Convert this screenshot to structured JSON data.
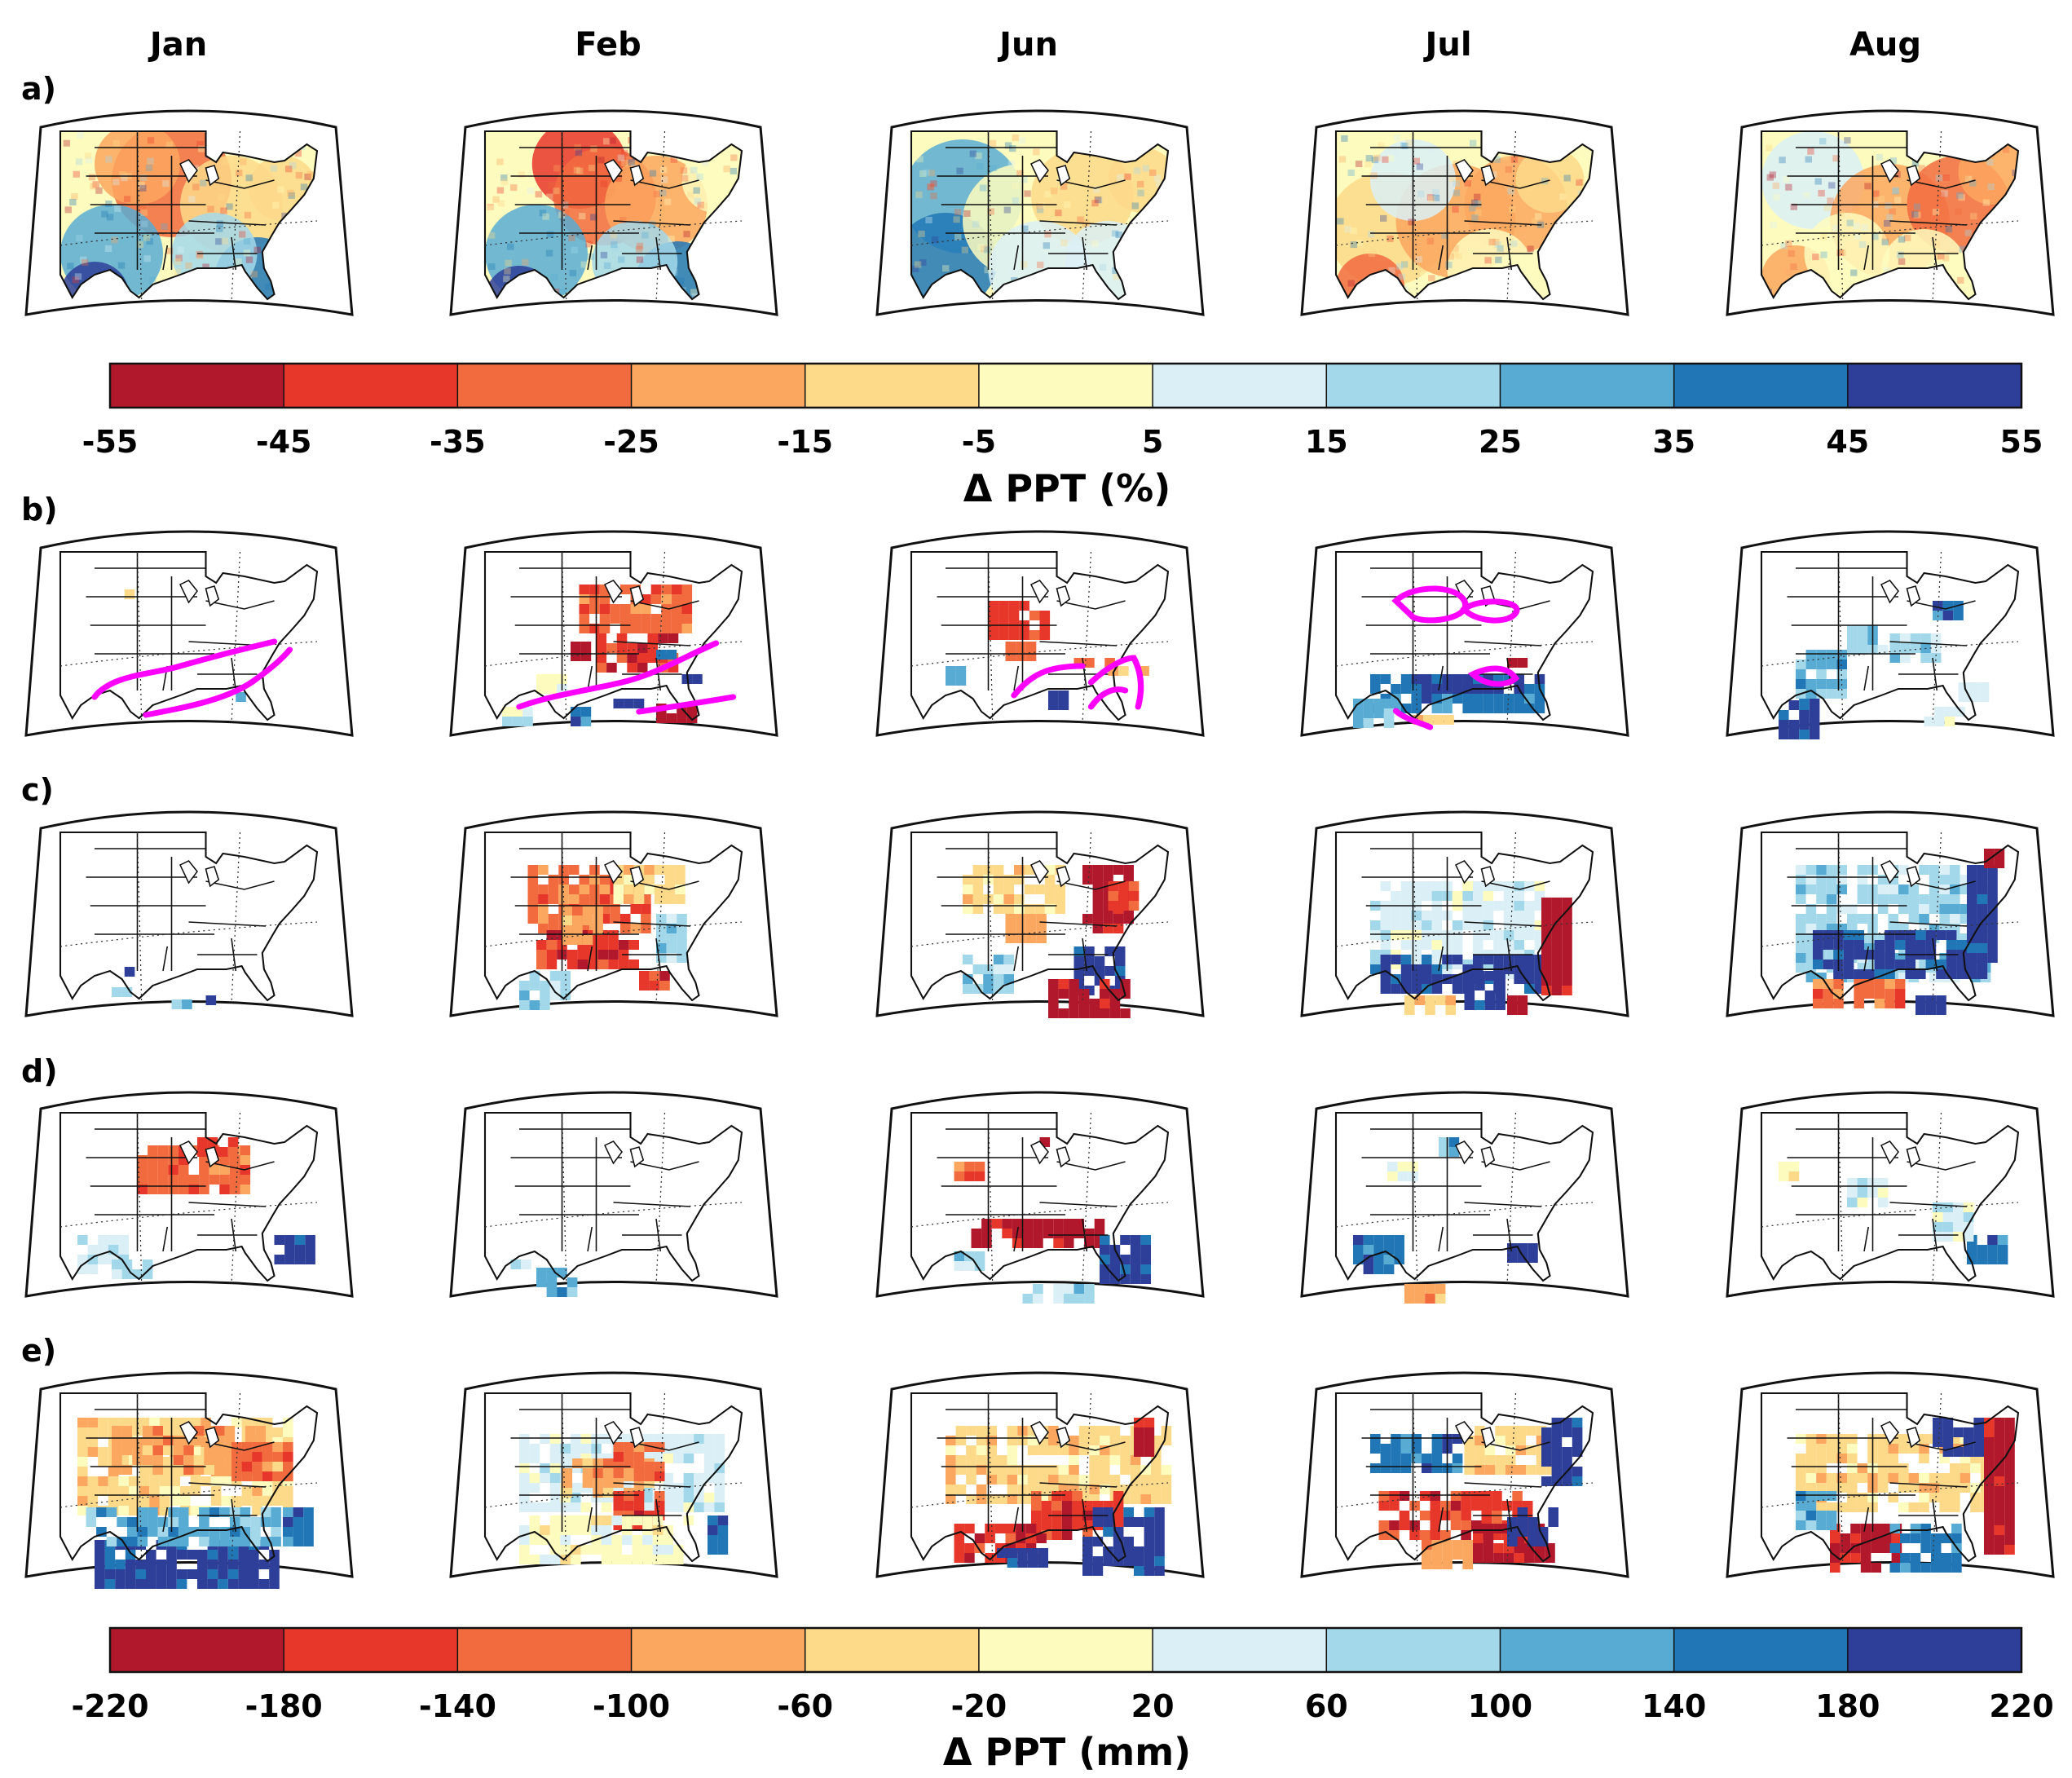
{
  "figure": {
    "months": [
      "Jan",
      "Feb",
      "Jun",
      "Jul",
      "Aug"
    ],
    "rows": [
      "a)",
      "b)",
      "c)",
      "d)",
      "e)"
    ],
    "map_region": "Eastern and central United States"
  },
  "colormap": [
    "#b2182b",
    "#e7362a",
    "#f26b3f",
    "#fba75f",
    "#fdd98a",
    "#fefbbe",
    "#daf0f6",
    "#a3d8ea",
    "#58acd4",
    "#2177b6",
    "#2e3f99"
  ],
  "overlay_color": "#ff00ff",
  "colorbar_top": {
    "ticks": [
      "-55",
      "-45",
      "-35",
      "-25",
      "-15",
      "-5",
      "5",
      "15",
      "25",
      "35",
      "45",
      "55"
    ],
    "title": "Δ PPT (%)"
  },
  "colorbar_bottom": {
    "ticks": [
      "-220",
      "-180",
      "-140",
      "-100",
      "-60",
      "-20",
      "20",
      "60",
      "100",
      "140",
      "180",
      "220"
    ],
    "title": "Δ PPT (mm)"
  }
}
